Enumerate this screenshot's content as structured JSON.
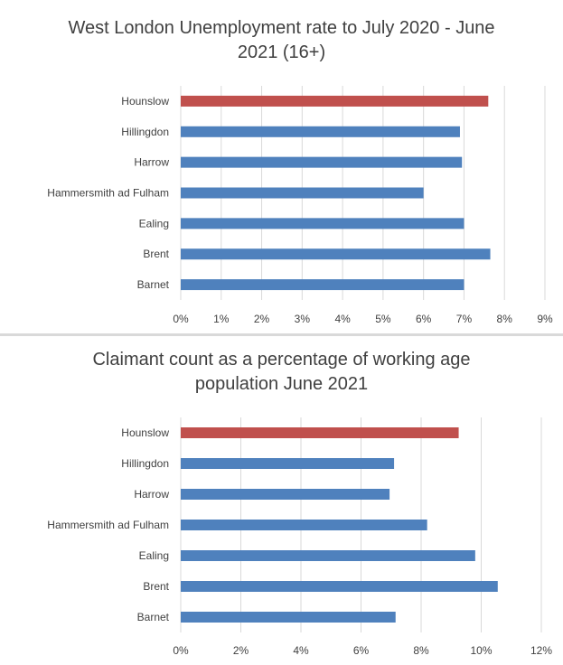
{
  "chart_data": [
    {
      "type": "bar",
      "orientation": "horizontal",
      "title": "West London Unemployment rate to July 2020 - June 2021 (16+)",
      "categories": [
        "Hounslow",
        "Hillingdon",
        "Harrow",
        "Hammersmith ad Fulham",
        "Ealing",
        "Brent",
        "Barnet"
      ],
      "values": [
        7.6,
        6.9,
        6.95,
        6.0,
        7.0,
        7.65,
        7.0
      ],
      "unit": "%",
      "xlim": [
        0,
        9
      ],
      "ticks": [
        "0%",
        "1%",
        "2%",
        "3%",
        "4%",
        "5%",
        "6%",
        "7%",
        "8%",
        "9%"
      ],
      "grid": true,
      "colors": {
        "highlight": "#c0504d",
        "default": "#4f81bd"
      },
      "highlight_category": "Hounslow"
    },
    {
      "type": "bar",
      "orientation": "horizontal",
      "title": "Claimant count as a percentage of working age population June 2021",
      "categories": [
        "Hounslow",
        "Hillingdon",
        "Harrow",
        "Hammersmith ad Fulham",
        "Ealing",
        "Brent",
        "Barnet"
      ],
      "values": [
        9.25,
        7.1,
        6.95,
        8.2,
        9.8,
        10.55,
        7.15
      ],
      "unit": "%",
      "xlim": [
        0,
        12
      ],
      "ticks": [
        "0%",
        "2%",
        "4%",
        "6%",
        "8%",
        "10%",
        "12%"
      ],
      "grid": true,
      "colors": {
        "highlight": "#c0504d",
        "default": "#4f81bd"
      },
      "highlight_category": "Hounslow"
    }
  ]
}
